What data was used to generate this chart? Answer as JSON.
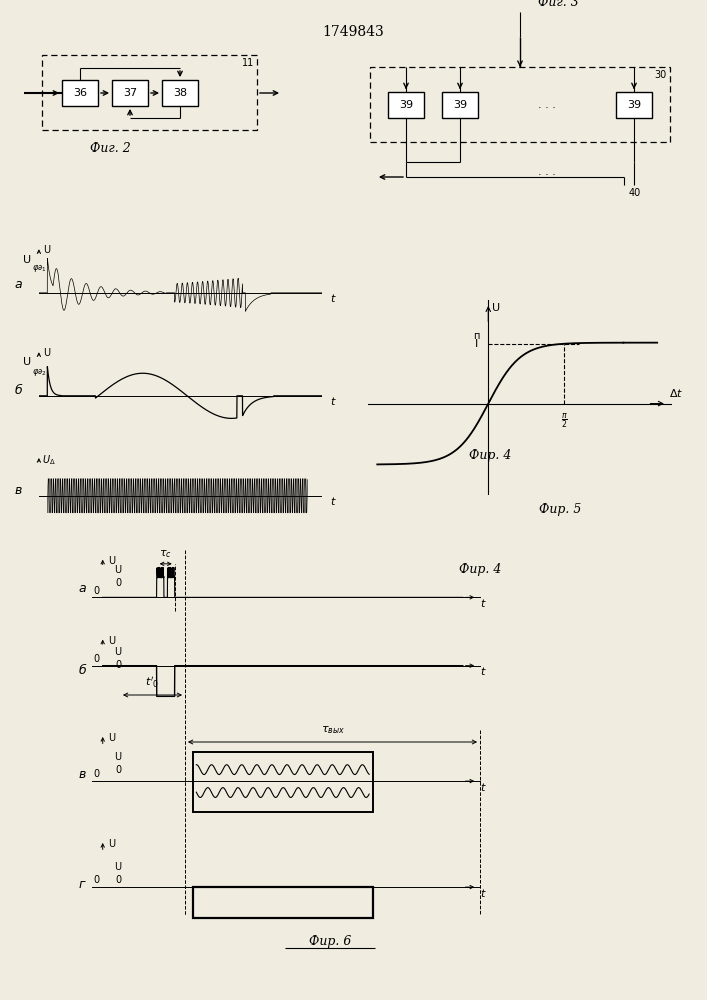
{
  "title": "1749843",
  "bg_color": "#f0ece0",
  "fig2_label": "Фиг. 2",
  "fig3_label": "Фиг. 3",
  "fig4_label": "Фир. 4",
  "fig5_label": "Фир. 5",
  "fig6_label": "Фир. 6"
}
